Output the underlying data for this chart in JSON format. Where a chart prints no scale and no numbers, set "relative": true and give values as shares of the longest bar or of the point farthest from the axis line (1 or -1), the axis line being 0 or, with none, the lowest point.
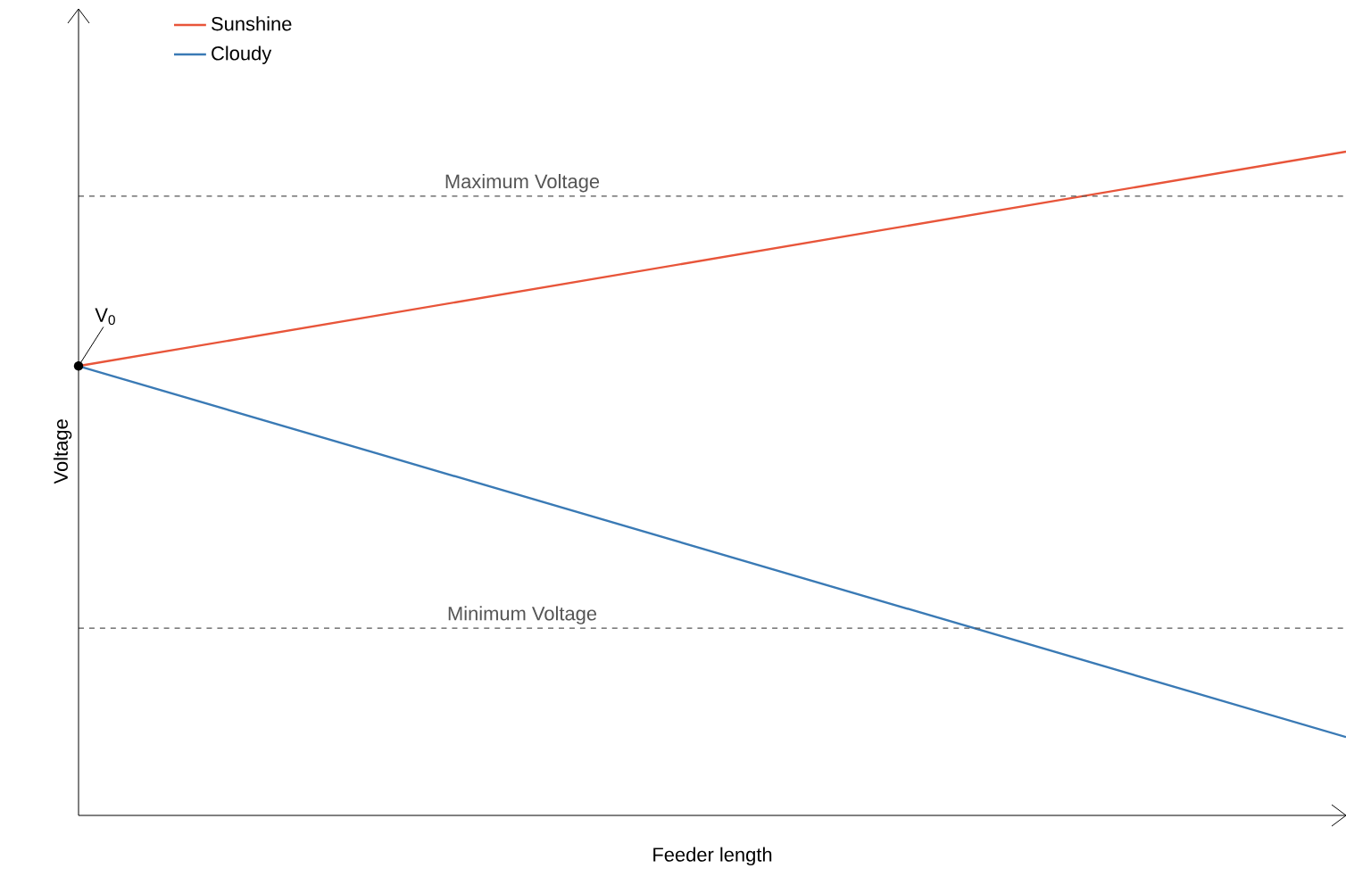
{
  "chart_data": {
    "type": "line",
    "relative": true,
    "xlabel": "Feeder length",
    "ylabel": "Voltage",
    "categories": [
      null,
      null
    ],
    "series": [
      {
        "name": "Sunshine",
        "color": "#e8553a",
        "values": [
          0.677,
          1
        ]
      },
      {
        "name": "Cloudy",
        "color": "#3a7ab5",
        "values": [
          0.677,
          0.118
        ]
      }
    ],
    "ref_lines": [
      {
        "axis": "y",
        "value": 0.933,
        "label": "Maximum Voltage",
        "color": "#555555",
        "line_style": "dashed"
      },
      {
        "axis": "y",
        "value": 0.282,
        "label": "Minimum Voltage",
        "color": "#555555",
        "line_style": "dashed"
      }
    ],
    "annotations": [
      {
        "text": "V$_{0}$",
        "y": 0.677
      }
    ],
    "legend": "top left"
  }
}
